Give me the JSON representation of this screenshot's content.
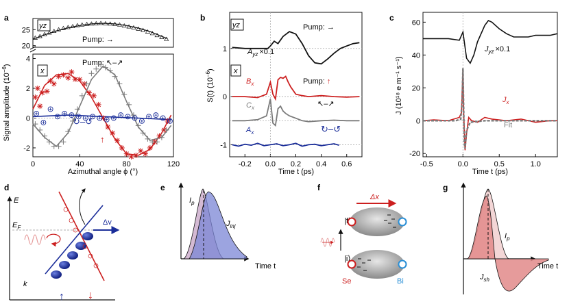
{
  "colors": {
    "red": "#cc1f1f",
    "blue": "#1a2d99",
    "gray": "#7a7a7a",
    "black": "#111111",
    "light_blue": "#7b86d6",
    "light_red": "#e69a9a",
    "light_purple": "#c9a9c9"
  },
  "panels": {
    "a": {
      "letter": "a"
    },
    "b": {
      "letter": "b"
    },
    "c": {
      "letter": "c"
    },
    "d": {
      "letter": "d"
    },
    "e": {
      "letter": "e"
    },
    "f": {
      "letter": "f"
    },
    "g": {
      "letter": "g"
    }
  },
  "chart_data": [
    {
      "id": "a",
      "type": "scatter",
      "title": "",
      "xlabel": "Azimuthal angle ϕ (°)",
      "ylabel": "Signal amplitude (10⁻⁶)",
      "ylabel_main": "Signal amplitude (10",
      "ylabel_exp": "−6",
      "ylabel_close": ")",
      "xlim": [
        0,
        120
      ],
      "xticks": [
        "0",
        "40",
        "80",
        "120"
      ],
      "top": {
        "tag": "yz",
        "ylim": [
          19.5,
          28.5
        ],
        "yticks": [
          "20",
          "25"
        ],
        "pump_label": "Pump: →",
        "fit": {
          "name": "yz fit",
          "x": [
            0,
            10,
            20,
            30,
            40,
            50,
            60,
            70,
            80,
            90,
            100,
            110,
            115
          ],
          "y": [
            22.0,
            23.4,
            24.6,
            25.6,
            26.3,
            26.8,
            27.0,
            26.8,
            26.3,
            25.5,
            24.4,
            22.9,
            22.2
          ]
        },
        "points": {
          "name": "yz data",
          "x": [
            2,
            6,
            10,
            14,
            18,
            22,
            26,
            30,
            34,
            38,
            42,
            46,
            50,
            54,
            58,
            62,
            66,
            70,
            74,
            78,
            82,
            86,
            90,
            94,
            98,
            102,
            106,
            110,
            114
          ],
          "y": [
            22.4,
            22.9,
            23.5,
            24.0,
            24.5,
            25.0,
            25.4,
            25.7,
            26.0,
            26.3,
            26.5,
            26.7,
            26.8,
            26.9,
            27.0,
            26.9,
            26.8,
            26.7,
            26.5,
            26.2,
            25.9,
            25.6,
            25.2,
            24.8,
            24.3,
            23.8,
            23.2,
            22.6,
            22.0
          ]
        }
      },
      "bottom": {
        "tag": "x",
        "ylim": [
          -2.6,
          4.3
        ],
        "yticks": [
          "-2",
          "0",
          "2",
          "4"
        ],
        "pump_label": "Pump: ↖–↗",
        "cx_label": "↻–↺",
        "up_arrow": "↑",
        "series": [
          {
            "name": "B_x (pump ↑)",
            "color": "red",
            "marker": "asterisk",
            "x": [
              2,
              4,
              6,
              8,
              12,
              15,
              18,
              22,
              26,
              30,
              33,
              36,
              40,
              44,
              48,
              52,
              56,
              60,
              64,
              68,
              72,
              76,
              80,
              84,
              88,
              92,
              96,
              100,
              104,
              108,
              112,
              115
            ],
            "y": [
              1.4,
              2.0,
              0.8,
              1.7,
              1.8,
              2.5,
              2.3,
              2.8,
              2.9,
              2.7,
              3.1,
              2.6,
              2.6,
              2.3,
              1.7,
              1.5,
              0.9,
              0.0,
              -0.6,
              -1.0,
              -1.5,
              -2.0,
              -2.4,
              -2.6,
              -2.5,
              -2.2,
              -2.4,
              -2.0,
              -1.6,
              -1.2,
              -0.8,
              -0.2
            ]
          },
          {
            "name": "C_x (pump ↖–↗)",
            "color": "gray",
            "marker": "plus",
            "x": [
              2,
              6,
              10,
              14,
              18,
              22,
              26,
              30,
              34,
              38,
              42,
              46,
              50,
              54,
              58,
              62,
              66,
              70,
              74,
              78,
              82,
              86,
              90,
              94,
              98,
              102,
              106,
              110,
              114
            ],
            "y": [
              -0.4,
              -0.8,
              -1.2,
              -1.6,
              -1.9,
              -1.9,
              -1.6,
              -0.9,
              -0.2,
              0.6,
              1.5,
              2.3,
              3.0,
              3.3,
              3.6,
              3.4,
              3.2,
              2.8,
              2.3,
              1.6,
              0.9,
              0.2,
              -0.5,
              -1.0,
              -1.4,
              -1.6,
              -1.6,
              -1.3,
              -0.8
            ]
          },
          {
            "name": "A_x (pump ↻–↺)",
            "color": "blue",
            "marker": "circle-plus",
            "x": [
              3,
              9,
              15,
              21,
              27,
              33,
              39,
              45,
              51,
              57,
              63,
              69,
              75,
              81,
              87,
              93,
              99,
              105,
              111,
              117
            ],
            "y": [
              0.3,
              -0.3,
              0.6,
              0.1,
              0.3,
              0.2,
              0.1,
              0.0,
              0.1,
              0.0,
              -0.1,
              0.0,
              0.2,
              0.1,
              0.0,
              -0.2,
              0.1,
              0.2,
              0.0,
              -0.2
            ]
          }
        ],
        "fits": [
          {
            "name": "B_x fit",
            "color": "red",
            "x": [
              0,
              10,
              20,
              30,
              40,
              50,
              60,
              70,
              80,
              90,
              100,
              110,
              118
            ],
            "y": [
              0.6,
              2.2,
              2.9,
              3.0,
              2.5,
              1.4,
              0.0,
              -1.4,
              -2.4,
              -2.5,
              -2.1,
              -1.0,
              0.2
            ]
          },
          {
            "name": "C_x fit",
            "color": "gray",
            "x": [
              0,
              10,
              20,
              30,
              40,
              50,
              60,
              70,
              80,
              90,
              100,
              110,
              118
            ],
            "y": [
              -0.4,
              -1.3,
              -1.9,
              -1.0,
              0.8,
              2.6,
              3.5,
              2.9,
              1.1,
              -0.6,
              -1.5,
              -1.3,
              -0.5
            ]
          },
          {
            "name": "A_x fit",
            "color": "blue",
            "x": [
              0,
              30,
              60,
              90,
              118
            ],
            "y": [
              0.1,
              0.2,
              0.1,
              0.0,
              -0.1
            ]
          }
        ]
      }
    },
    {
      "id": "b",
      "type": "line",
      "xlabel": "Time t (ps)",
      "ylabel": "S(t) (10⁻⁶)",
      "ylabel_main": "S(t) (10",
      "ylabel_exp": "−6",
      "ylabel_close": ")",
      "xlim": [
        -0.32,
        0.72
      ],
      "xticks": [
        "-0.2",
        "0.0",
        "0.2",
        "0.4",
        "0.6"
      ],
      "ylim": [
        -1.25,
        1.75
      ],
      "yticks": [
        "-1",
        "0",
        "1"
      ],
      "tags": [
        "yz",
        "x"
      ],
      "labels": {
        "Ayz": "A",
        "Ayz_sub": "yz",
        "Ayz_scale": "×0.1",
        "pump_top": "Pump: →",
        "Bx": "B",
        "Bx_sub": "x",
        "pump_bx": "Pump:",
        "pump_bx_arrow": "↑",
        "Cx": "C",
        "Cx_sub": "x",
        "cx_pol": "↖–↗",
        "Ax": "A",
        "Ax_sub": "x",
        "ax_pol": "↻–↺"
      },
      "series": [
        {
          "name": "A_yz ×0.1",
          "color": "black",
          "x": [
            -0.3,
            -0.2,
            -0.1,
            -0.02,
            0.0,
            0.03,
            0.06,
            0.1,
            0.15,
            0.2,
            0.25,
            0.3,
            0.35,
            0.4,
            0.45,
            0.5,
            0.55,
            0.6,
            0.65,
            0.7
          ],
          "y": [
            1.02,
            1.0,
            1.0,
            1.0,
            1.05,
            1.15,
            1.1,
            1.25,
            1.35,
            1.3,
            1.1,
            0.85,
            0.7,
            0.68,
            0.78,
            0.9,
            1.0,
            1.05,
            1.1,
            1.12
          ]
        },
        {
          "name": "B_x",
          "color": "red",
          "x": [
            -0.3,
            -0.2,
            -0.1,
            -0.03,
            0.0,
            0.02,
            0.04,
            0.06,
            0.08,
            0.1,
            0.12,
            0.14,
            0.16,
            0.2,
            0.25,
            0.3,
            0.4,
            0.5,
            0.6,
            0.7
          ],
          "y": [
            0.0,
            0.0,
            -0.02,
            0.05,
            0.3,
            0.05,
            -0.05,
            0.35,
            0.4,
            0.38,
            0.42,
            0.3,
            0.2,
            0.05,
            0.02,
            0.0,
            0.02,
            0.0,
            -0.01,
            0.0
          ]
        },
        {
          "name": "C_x",
          "color": "gray",
          "x": [
            -0.3,
            -0.2,
            -0.1,
            -0.03,
            0.0,
            0.02,
            0.04,
            0.06,
            0.08,
            0.1,
            0.12,
            0.15,
            0.2,
            0.25,
            0.3,
            0.4,
            0.5,
            0.6,
            0.7
          ],
          "y": [
            -0.5,
            -0.5,
            -0.48,
            -0.4,
            -0.05,
            -0.55,
            -0.6,
            -0.25,
            -0.2,
            -0.3,
            -0.35,
            -0.4,
            -0.45,
            -0.5,
            -0.52,
            -0.5,
            -0.49,
            -0.5,
            -0.5
          ]
        },
        {
          "name": "A_x",
          "color": "blue",
          "x": [
            -0.3,
            -0.25,
            -0.2,
            -0.15,
            -0.1,
            -0.05,
            0.0,
            0.05,
            0.1,
            0.15,
            0.2,
            0.25,
            0.3,
            0.35,
            0.4,
            0.45,
            0.5,
            0.54
          ],
          "y": [
            -1.0,
            -1.03,
            -0.99,
            -1.01,
            -0.97,
            -1.02,
            -1.0,
            -0.98,
            -1.02,
            -1.0,
            -0.97,
            -1.03,
            -1.0,
            -0.99,
            -1.02,
            -1.0,
            -0.98,
            -1.01
          ]
        }
      ],
      "baselines": [
        1,
        0,
        -0.5,
        -1
      ]
    },
    {
      "id": "c",
      "type": "line",
      "xlabel": "Time t (ps)",
      "ylabel": "J (10¹⁸ e m⁻¹ s⁻¹)",
      "xlim": [
        -0.55,
        1.3
      ],
      "xticks": [
        "-0.5",
        "0.0",
        "0.5",
        "1.0"
      ],
      "ylim": [
        -22,
        66
      ],
      "yticks": [
        "-20",
        "0",
        "20",
        "40",
        "60"
      ],
      "labels": {
        "Jyz": "J",
        "Jyz_sub": "yz",
        "Jyz_scale": "×0.1",
        "Jx": "J",
        "Jx_sub": "x",
        "fit": "Fit"
      },
      "series": [
        {
          "name": "J_yz ×0.1",
          "color": "black",
          "x": [
            -0.55,
            -0.4,
            -0.2,
            -0.05,
            0.0,
            0.05,
            0.1,
            0.15,
            0.2,
            0.3,
            0.35,
            0.4,
            0.5,
            0.6,
            0.7,
            0.8,
            0.9,
            1.0,
            1.1,
            1.2,
            1.3
          ],
          "y": [
            50,
            50,
            50,
            49,
            54,
            38,
            35,
            40,
            48,
            58,
            61,
            60,
            56,
            53,
            51,
            51,
            51,
            52,
            52,
            52,
            53
          ]
        },
        {
          "name": "J_x",
          "color": "red",
          "x": [
            -0.55,
            -0.4,
            -0.2,
            -0.05,
            -0.02,
            0.0,
            0.01,
            0.03,
            0.05,
            0.08,
            0.12,
            0.2,
            0.3,
            0.4,
            0.6,
            0.8,
            1.0,
            1.2,
            1.3
          ],
          "y": [
            0,
            0.5,
            0,
            2,
            5,
            32,
            5,
            -18,
            -8,
            2,
            0,
            -1,
            2,
            1,
            0,
            1,
            -1,
            0,
            0
          ]
        },
        {
          "name": "Fit",
          "color": "gray",
          "x": [
            -0.55,
            -0.1,
            -0.03,
            -0.01,
            0.0,
            0.01,
            0.02,
            0.03,
            0.05,
            0.1,
            0.3,
            1.3
          ],
          "y": [
            0,
            0,
            1,
            12,
            32,
            8,
            -14,
            -17,
            -6,
            -1,
            0,
            0
          ]
        }
      ]
    }
  ],
  "schematic_d": {
    "axis_e": "E",
    "axis_k": "k",
    "fermi": "E",
    "fermi_sub": "F",
    "delta_v": "Δv",
    "up_arrow": "↑",
    "down_arrow": "↓"
  },
  "schematic_e": {
    "ip_label": "I",
    "ip_sub": "p",
    "jinj_label": "J",
    "jinj_sub": "inj",
    "time_label": "Time t"
  },
  "schematic_f": {
    "ket_f": "|f⟩",
    "ket_i": "|i⟩",
    "delta_x": "Δx",
    "se": "Se",
    "bi": "Bi"
  },
  "schematic_g": {
    "ip_label": "I",
    "ip_sub": "p",
    "jsh_label": "J",
    "jsh_sub": "sh",
    "time_label": "Time t"
  }
}
